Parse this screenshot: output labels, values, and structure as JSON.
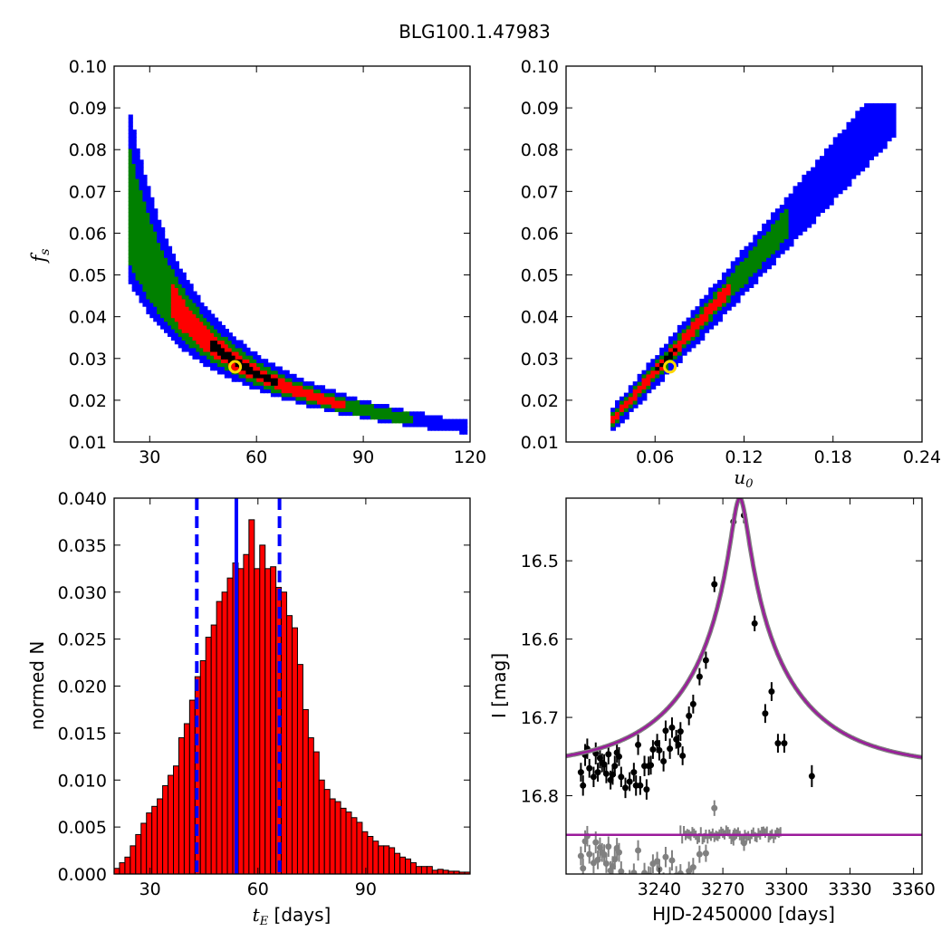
{
  "figure": {
    "title": "BLG100.1.47983"
  },
  "colors": {
    "sigma1": "#000000",
    "sigma2": "#ff0000",
    "sigma3": "#008000",
    "sigma4": "#0000ff",
    "best": "#ffd700",
    "model": "#9b1b9b",
    "data": "#000000",
    "residual": "#808080",
    "hist": "#ff0000",
    "median": "#0000ff"
  },
  "chart_data": [
    {
      "type": "heatmap",
      "id": "tE-fs",
      "xlabel": "",
      "ylabel": "f_s",
      "xlim": [
        20,
        120
      ],
      "ylim": [
        0.01,
        0.1
      ],
      "xticks": [
        "30",
        "60",
        "90",
        "120"
      ],
      "yticks": [
        "0.01",
        "0.02",
        "0.03",
        "0.04",
        "0.05",
        "0.06",
        "0.07",
        "0.08",
        "0.09",
        "0.10"
      ],
      "relation": "fs * tE ≈ 1.55 (curved banana)",
      "best_fit": {
        "x": 54,
        "y": 0.028
      },
      "confidence_levels": [
        "black (1σ)",
        "red (2σ)",
        "green (3σ)",
        "blue (>3σ)"
      ]
    },
    {
      "type": "heatmap",
      "id": "u0-fs",
      "xlabel": "u_0",
      "ylabel": "",
      "xlim": [
        0.0,
        0.24
      ],
      "ylim": [
        0.01,
        0.1
      ],
      "xticks": [
        "0.06",
        "0.12",
        "0.18",
        "0.24"
      ],
      "yticks": [
        "0.01",
        "0.02",
        "0.03",
        "0.04",
        "0.05",
        "0.06",
        "0.07",
        "0.08",
        "0.09",
        "0.10"
      ],
      "relation": "fs ≈ 0.4 * u0 (linear)",
      "best_fit": {
        "x": 0.07,
        "y": 0.028
      }
    },
    {
      "type": "bar",
      "id": "tE-histogram",
      "xlabel": "t_E [days]",
      "ylabel": "normed N",
      "xlim": [
        20,
        119
      ],
      "ylim": [
        0,
        0.04
      ],
      "xticks": [
        "30",
        "60",
        "90"
      ],
      "yticks": [
        "0.000",
        "0.005",
        "0.010",
        "0.015",
        "0.020",
        "0.025",
        "0.030",
        "0.035",
        "0.040"
      ],
      "bin_start": 20,
      "bin_width": 1.5,
      "values": [
        0.0006,
        0.0012,
        0.0018,
        0.003,
        0.0042,
        0.0054,
        0.0065,
        0.0072,
        0.008,
        0.0094,
        0.0105,
        0.0115,
        0.0145,
        0.016,
        0.0185,
        0.021,
        0.0227,
        0.0252,
        0.0265,
        0.029,
        0.03,
        0.0315,
        0.0331,
        0.0325,
        0.034,
        0.0377,
        0.0325,
        0.035,
        0.0325,
        0.0327,
        0.0305,
        0.03,
        0.0275,
        0.0262,
        0.0223,
        0.0175,
        0.0145,
        0.013,
        0.01,
        0.009,
        0.008,
        0.0077,
        0.007,
        0.0066,
        0.006,
        0.0055,
        0.0045,
        0.004,
        0.0035,
        0.003,
        0.003,
        0.0028,
        0.0022,
        0.0018,
        0.0016,
        0.0012,
        0.0008,
        0.0008,
        0.0008,
        0.0004,
        0.0005,
        0.0004,
        0.0003,
        0.0003,
        0.0002,
        0.0002
      ],
      "median": 54,
      "lower": 43,
      "upper": 66
    },
    {
      "type": "scatter",
      "id": "light-curve",
      "xlabel": "HJD-2450000 [days]",
      "ylabel": "I [mag]",
      "xlim": [
        3196,
        3364
      ],
      "ylim": [
        16.9,
        16.42
      ],
      "y_inverted": true,
      "xticks": [
        "3240",
        "3270",
        "3300",
        "3330",
        "3360"
      ],
      "yticks": [
        "16.5",
        "16.6",
        "16.7",
        "16.8"
      ],
      "model": {
        "t0": 3278,
        "tE": 54,
        "u0": 0.07,
        "baseline": 16.765,
        "amp_scale": 0.31
      },
      "residual_offset": 16.85,
      "points": [
        [
          3203,
          16.77,
          0.012
        ],
        [
          3204,
          16.787,
          0.013
        ],
        [
          3205,
          16.748,
          0.014
        ],
        [
          3206,
          16.74,
          0.013
        ],
        [
          3207,
          16.765,
          0.012
        ],
        [
          3209,
          16.776,
          0.013
        ],
        [
          3210,
          16.746,
          0.014
        ],
        [
          3211,
          16.77,
          0.012
        ],
        [
          3212,
          16.752,
          0.013
        ],
        [
          3213,
          16.758,
          0.012
        ],
        [
          3214,
          16.76,
          0.013
        ],
        [
          3215,
          16.772,
          0.012
        ],
        [
          3216,
          16.747,
          0.013
        ],
        [
          3217,
          16.78,
          0.012
        ],
        [
          3218,
          16.773,
          0.013
        ],
        [
          3219,
          16.762,
          0.013
        ],
        [
          3220,
          16.745,
          0.013
        ],
        [
          3221,
          16.75,
          0.012
        ],
        [
          3222,
          16.776,
          0.013
        ],
        [
          3224,
          16.79,
          0.013
        ],
        [
          3226,
          16.782,
          0.012
        ],
        [
          3228,
          16.77,
          0.012
        ],
        [
          3229,
          16.787,
          0.013
        ],
        [
          3230,
          16.735,
          0.013
        ],
        [
          3231,
          16.787,
          0.012
        ],
        [
          3233,
          16.762,
          0.013
        ],
        [
          3234,
          16.792,
          0.013
        ],
        [
          3235,
          16.762,
          0.012
        ],
        [
          3236,
          16.761,
          0.012
        ],
        [
          3237,
          16.741,
          0.012
        ],
        [
          3239,
          16.733,
          0.012
        ],
        [
          3240,
          16.742,
          0.013
        ],
        [
          3242,
          16.756,
          0.013
        ],
        [
          3243,
          16.717,
          0.013
        ],
        [
          3245,
          16.74,
          0.013
        ],
        [
          3246,
          16.713,
          0.013
        ],
        [
          3248,
          16.728,
          0.012
        ],
        [
          3249,
          16.735,
          0.013
        ],
        [
          3250,
          16.718,
          0.012
        ],
        [
          3251,
          16.749,
          0.012
        ],
        [
          3254,
          16.698,
          0.012
        ],
        [
          3256,
          16.683,
          0.012
        ],
        [
          3259,
          16.648,
          0.011
        ],
        [
          3262,
          16.627,
          0.011
        ],
        [
          3266,
          16.53,
          0.01
        ],
        [
          3275,
          16.45,
          0.01
        ],
        [
          3280,
          16.442,
          0.01
        ],
        [
          3285,
          16.58,
          0.01
        ],
        [
          3290,
          16.695,
          0.012
        ],
        [
          3293,
          16.667,
          0.012
        ],
        [
          3296,
          16.733,
          0.012
        ],
        [
          3299,
          16.733,
          0.012
        ],
        [
          3312,
          16.775,
          0.014
        ]
      ]
    }
  ]
}
